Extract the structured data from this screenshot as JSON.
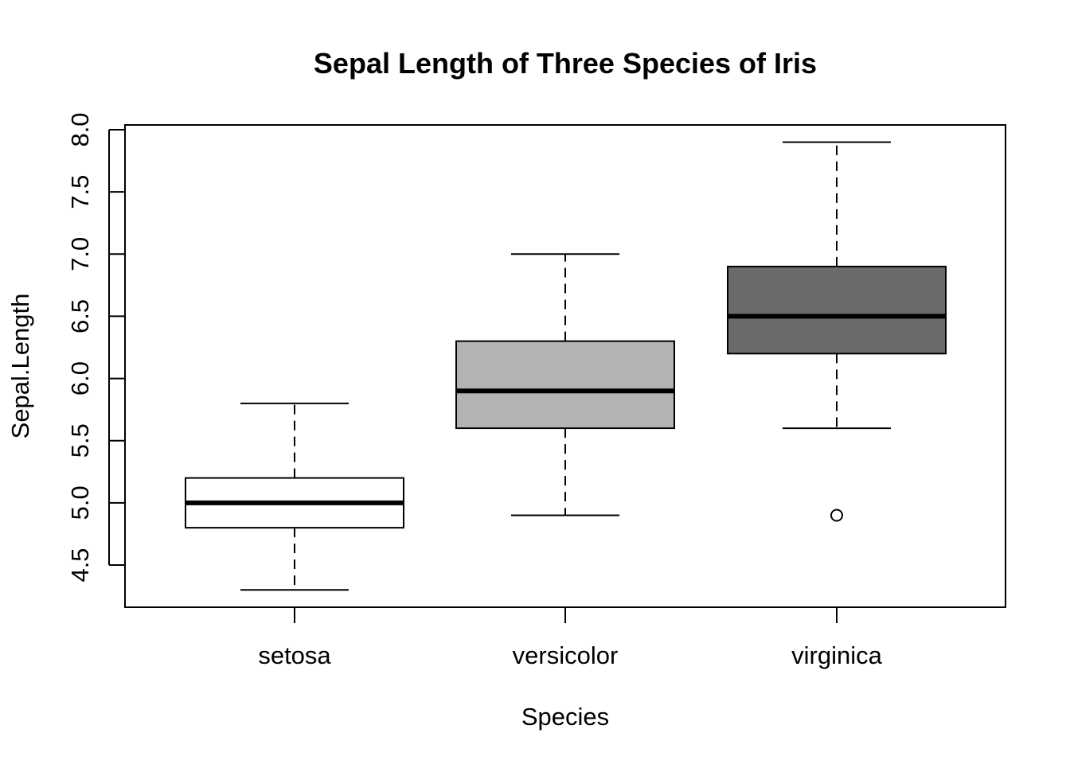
{
  "chart_data": {
    "type": "box",
    "title": "Sepal Length of Three Species of Iris",
    "xlabel": "Species",
    "ylabel": "Sepal.Length",
    "categories": [
      "setosa",
      "versicolor",
      "virginica"
    ],
    "yticks": [
      "4.5",
      "5.0",
      "5.5",
      "6.0",
      "6.5",
      "7.0",
      "7.5",
      "8.0"
    ],
    "ylim": [
      4.2,
      8.04
    ],
    "grid": false,
    "boxes": [
      {
        "category": "setosa",
        "whisker_low": 4.3,
        "q1": 4.8,
        "median": 5.0,
        "q3": 5.2,
        "whisker_high": 5.8,
        "outliers": [],
        "fill": "#ffffff"
      },
      {
        "category": "versicolor",
        "whisker_low": 4.9,
        "q1": 5.6,
        "median": 5.9,
        "q3": 6.3,
        "whisker_high": 7.0,
        "outliers": [],
        "fill": "#b3b3b3"
      },
      {
        "category": "virginica",
        "whisker_low": 5.6,
        "q1": 6.2,
        "median": 6.5,
        "q3": 6.9,
        "whisker_high": 7.9,
        "outliers": [
          4.9
        ],
        "fill": "#6b6b6b"
      }
    ]
  }
}
